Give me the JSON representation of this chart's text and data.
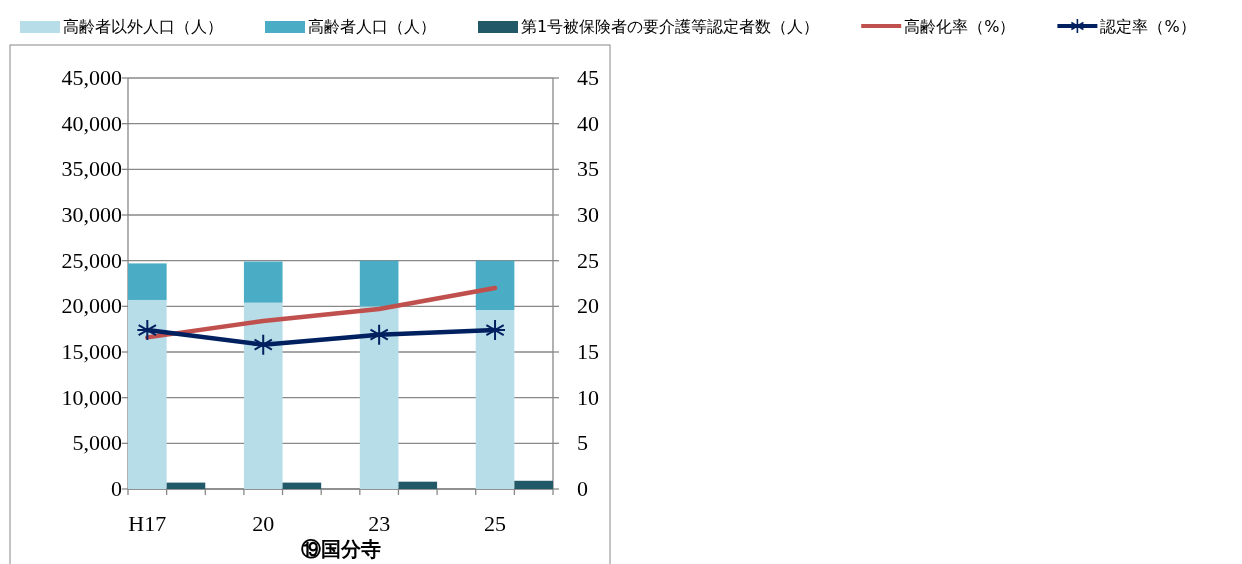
{
  "chart_data": {
    "type": "bar",
    "xlabel": "⑲国分寺",
    "categories": [
      "H17",
      null,
      null,
      "20",
      null,
      null,
      "23",
      null,
      null,
      "25",
      null
    ],
    "stacked": true,
    "legend": "top",
    "grid": "y",
    "ylim": [
      0,
      45000
    ],
    "yticks": [
      {
        "value": 0,
        "label": "0"
      },
      {
        "value": 5000,
        "label": "5,000"
      },
      {
        "value": 10000,
        "label": "10,000"
      },
      {
        "value": 15000,
        "label": "15,000"
      },
      {
        "value": 20000,
        "label": "20,000"
      },
      {
        "value": 25000,
        "label": "25,000"
      },
      {
        "value": 30000,
        "label": "30,000"
      },
      {
        "value": 35000,
        "label": "35,000"
      },
      {
        "value": 40000,
        "label": "40,000"
      },
      {
        "value": 45000,
        "label": "45,000"
      }
    ],
    "y2lim": [
      0,
      45
    ],
    "y2ticks": [
      0,
      5,
      10,
      15,
      20,
      25,
      30,
      35,
      40,
      45
    ],
    "series": [
      {
        "name": "高齢者以外人口（人）",
        "color": "#b7dde8",
        "values": [
          20700,
          null,
          null,
          20400,
          null,
          null,
          20000,
          null,
          null,
          19600,
          null
        ]
      },
      {
        "name": "高齢者人口（人）",
        "color": "#4bacc6",
        "values": [
          4000,
          null,
          null,
          4500,
          null,
          null,
          5000,
          null,
          null,
          5400,
          null
        ]
      },
      {
        "name": "第1号被保険者の要介護等認定者数（人）",
        "color": "#215968",
        "values": [
          null,
          700,
          null,
          null,
          700,
          null,
          null,
          800,
          null,
          null,
          900
        ]
      },
      {
        "name": "高齢化率（%）",
        "type": "line",
        "axis": "y2",
        "color": "#c0504d",
        "marker": "none",
        "values": [
          16.6,
          null,
          null,
          18.4,
          null,
          null,
          19.7,
          null,
          null,
          22.0,
          null
        ]
      },
      {
        "name": "認定率（%）",
        "type": "line",
        "axis": "y2",
        "color": "#002060",
        "marker": "cross",
        "values": [
          17.4,
          null,
          null,
          15.8,
          null,
          null,
          16.9,
          null,
          null,
          17.4,
          null
        ]
      }
    ]
  }
}
